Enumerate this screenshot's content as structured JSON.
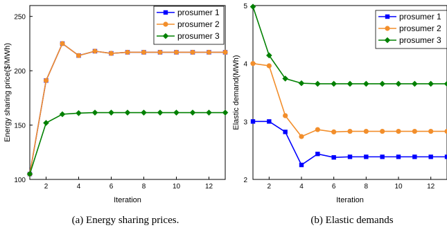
{
  "chart_data": [
    {
      "type": "line",
      "caption": "(a) Energy sharing prices.",
      "xlabel": "Iteration",
      "ylabel": "Energy sharing price($/MWh)",
      "xlim": [
        1,
        13
      ],
      "ylim": [
        100,
        260
      ],
      "xticks": [
        2,
        4,
        6,
        8,
        10,
        12
      ],
      "yticks": [
        100,
        150,
        200,
        250
      ],
      "legend_position": "top-right",
      "x": [
        1,
        2,
        3,
        4,
        5,
        6,
        7,
        8,
        9,
        10,
        11,
        12,
        13
      ],
      "series": [
        {
          "name": "prosumer 1",
          "color": "#0000ff",
          "marker": "square",
          "values": [
            105,
            191,
            225,
            214,
            218,
            216,
            217,
            217,
            217,
            217,
            217,
            217,
            217
          ]
        },
        {
          "name": "prosumer 2",
          "color": "#f28e2b",
          "marker": "circle",
          "values": [
            105,
            191,
            225,
            214,
            218,
            216,
            217,
            217,
            217,
            217,
            217,
            217,
            217
          ]
        },
        {
          "name": "prosumer 3",
          "color": "#008000",
          "marker": "diamond",
          "values": [
            105,
            152,
            160,
            161,
            161.5,
            161.5,
            161.5,
            161.5,
            161.5,
            161.5,
            161.5,
            161.5,
            161.5
          ]
        }
      ]
    },
    {
      "type": "line",
      "caption": "(b) Elastic demands",
      "xlabel": "Iteration",
      "ylabel": "Elastic demand(MWh)",
      "xlim": [
        1,
        13
      ],
      "ylim": [
        2,
        5
      ],
      "xticks": [
        2,
        4,
        6,
        8,
        10,
        12
      ],
      "yticks": [
        2,
        3,
        4,
        5
      ],
      "legend_position": "top-right",
      "x": [
        1,
        2,
        3,
        4,
        5,
        6,
        7,
        8,
        9,
        10,
        11,
        12,
        13
      ],
      "series": [
        {
          "name": "prosumer 1",
          "color": "#0000ff",
          "marker": "square",
          "values": [
            3.0,
            3.0,
            2.82,
            2.25,
            2.44,
            2.38,
            2.39,
            2.39,
            2.39,
            2.39,
            2.39,
            2.39,
            2.39
          ]
        },
        {
          "name": "prosumer 2",
          "color": "#f28e2b",
          "marker": "circle",
          "values": [
            4.0,
            3.96,
            3.1,
            2.74,
            2.86,
            2.82,
            2.83,
            2.83,
            2.83,
            2.83,
            2.83,
            2.83,
            2.83
          ]
        },
        {
          "name": "prosumer 3",
          "color": "#008000",
          "marker": "diamond",
          "values": [
            4.98,
            4.14,
            3.74,
            3.66,
            3.65,
            3.65,
            3.65,
            3.65,
            3.65,
            3.65,
            3.65,
            3.65,
            3.65
          ]
        }
      ]
    }
  ]
}
